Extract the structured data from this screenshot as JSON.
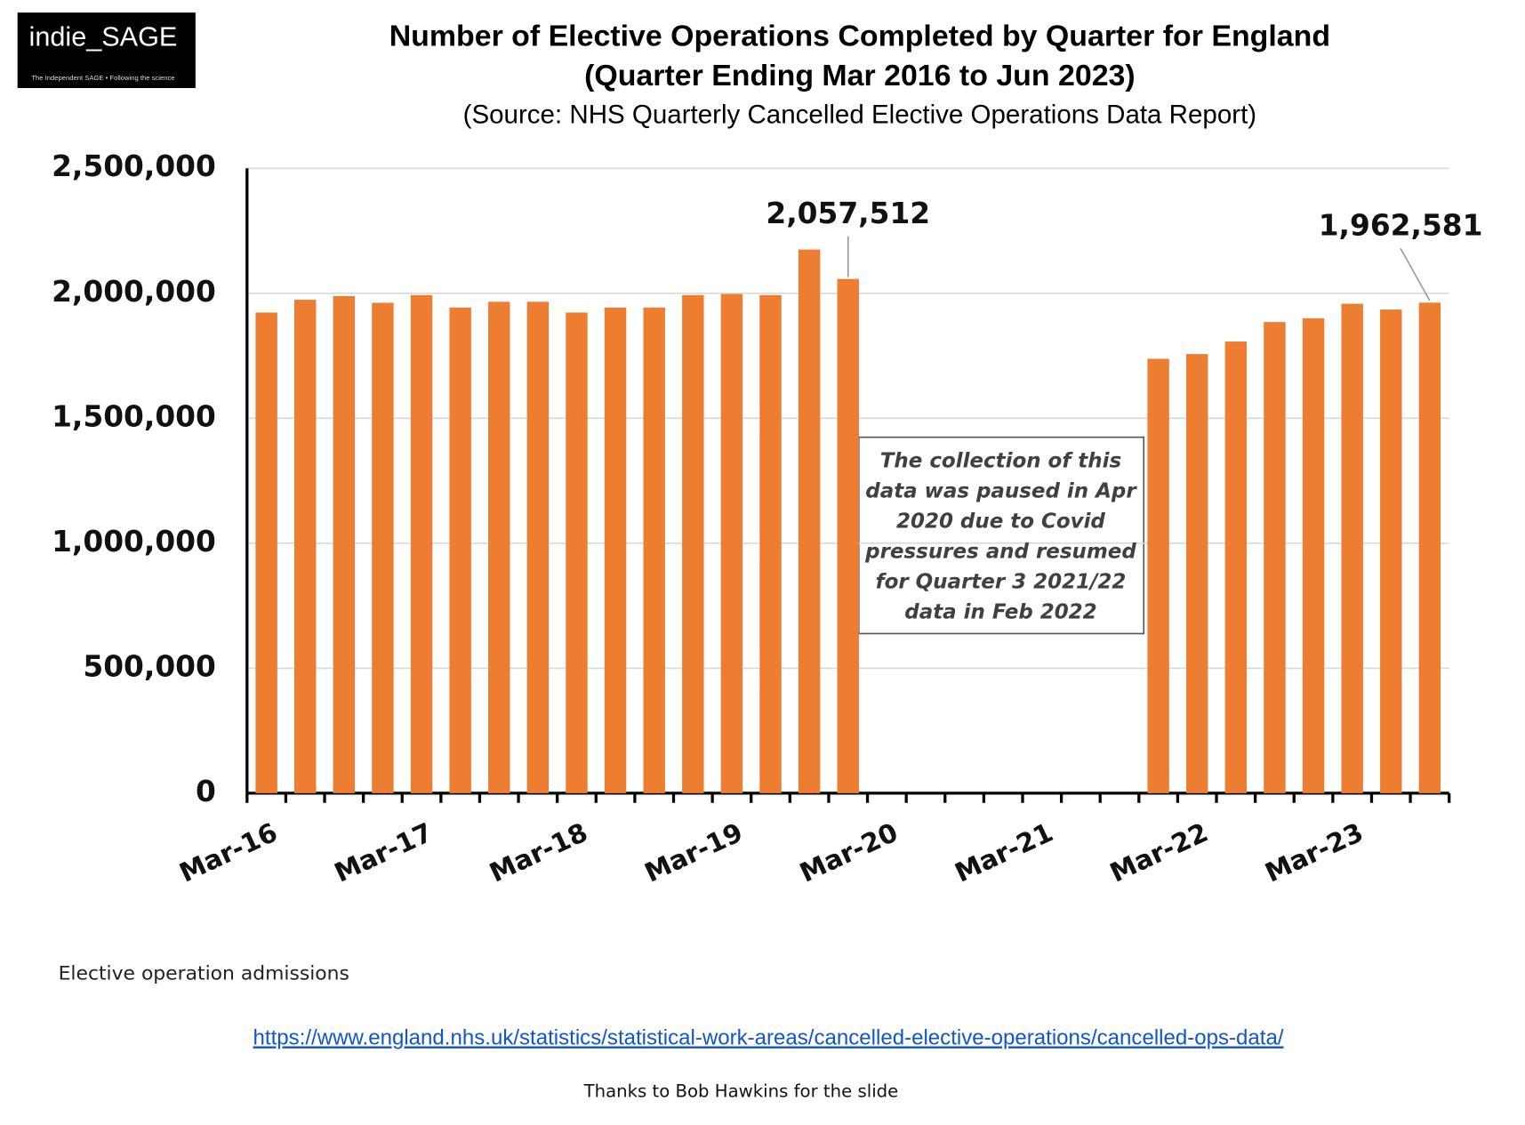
{
  "chart_data": {
    "type": "bar",
    "logo": "indie_SAGE",
    "logo_tagline": "The Independent SAGE • Following the science",
    "title": "Number of Elective Operations Completed by Quarter for England",
    "subtitle": "(Quarter Ending Mar 2016 to Jun 2023)",
    "source": "(Source: NHS Quarterly Cancelled Elective Operations Data Report)",
    "categories": [
      "Mar-16",
      null,
      null,
      null,
      "Mar-17",
      null,
      null,
      null,
      "Mar-18",
      null,
      null,
      null,
      "Mar-19",
      null,
      null,
      null,
      "Mar-20",
      null,
      null,
      null,
      "Mar-21",
      null,
      null,
      null,
      "Mar-22",
      null,
      null,
      null,
      "Mar-23",
      null,
      null
    ],
    "values": [
      1923000,
      1974000,
      1989000,
      1962000,
      1993000,
      1943000,
      1966000,
      1966000,
      1923000,
      1943000,
      1943000,
      1993000,
      1997000,
      1993000,
      2175000,
      2057512,
      null,
      null,
      null,
      null,
      null,
      null,
      null,
      1738000,
      1757000,
      1807000,
      1885000,
      1900000,
      1958000,
      1935000,
      1962581
    ],
    "value_labels": [
      null,
      null,
      null,
      null,
      null,
      null,
      null,
      null,
      null,
      null,
      null,
      null,
      null,
      null,
      null,
      "2,057,512",
      null,
      null,
      null,
      null,
      null,
      null,
      null,
      null,
      null,
      null,
      null,
      null,
      null,
      null,
      "1,962,581"
    ],
    "color": "#ed7d31",
    "ylim": [
      0,
      2500000
    ],
    "yticks": [
      0,
      {
        "value": 500000,
        "label": "500,000"
      },
      {
        "value": 1000000,
        "label": "1,000,000"
      },
      {
        "value": 1500000,
        "label": "1,500,000"
      },
      {
        "value": 2000000,
        "label": "2,000,000"
      },
      {
        "value": 2500000,
        "label": "2,500,000"
      }
    ],
    "grid": true,
    "annotation": [
      "The collection of this",
      "data was paused in Apr",
      "2020 due to Covid",
      "pressures and resumed",
      "for Quarter 3 2021/22",
      "data in Feb 2022"
    ],
    "footnote": "Elective operation admissions",
    "link": "https://www.england.nhs.uk/statistics/statistical-work-areas/cancelled-elective-operations/cancelled-ops-data/",
    "credit": "Thanks to Bob Hawkins for the slide"
  }
}
